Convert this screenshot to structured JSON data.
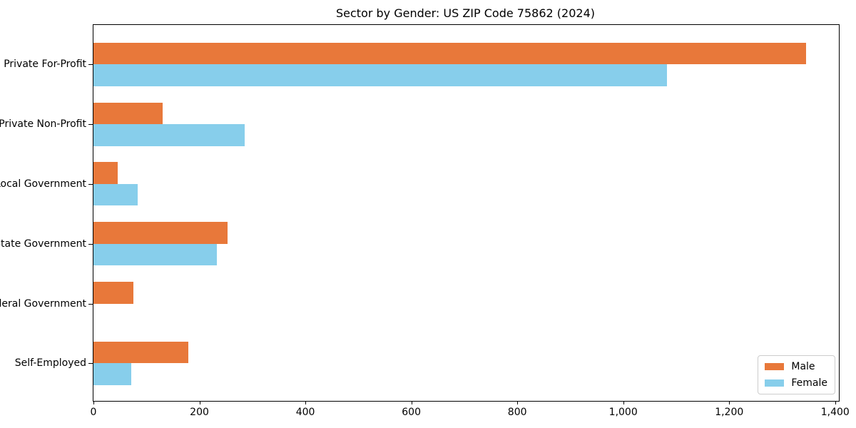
{
  "chart_data": {
    "type": "bar",
    "orientation": "horizontal",
    "title": "Sector by Gender: US ZIP Code 75862 (2024)",
    "categories": [
      "Private For-Profit",
      "Private Non-Profit",
      "Local Government",
      "State Government",
      "Federal Government",
      "Self-Employed"
    ],
    "series": [
      {
        "name": "Male",
        "color": "#e8783a",
        "values": [
          1345,
          130,
          46,
          253,
          75,
          179
        ]
      },
      {
        "name": "Female",
        "color": "#87ceeb",
        "values": [
          1083,
          286,
          84,
          233,
          0,
          72
        ]
      }
    ],
    "xlabel": "",
    "ylabel": "",
    "xlim": [
      0,
      1407
    ],
    "x_ticks": [
      {
        "value": 0,
        "label": "0"
      },
      {
        "value": 200,
        "label": "200"
      },
      {
        "value": 400,
        "label": "400"
      },
      {
        "value": 600,
        "label": "600"
      },
      {
        "value": 800,
        "label": "800"
      },
      {
        "value": 1000,
        "label": "1,000"
      },
      {
        "value": 1200,
        "label": "1,200"
      },
      {
        "value": 1400,
        "label": "1,400"
      }
    ],
    "grid": false,
    "legend": {
      "position": "lower-right",
      "entries": [
        {
          "label": "Male",
          "color": "#e8783a"
        },
        {
          "label": "Female",
          "color": "#87ceeb"
        }
      ]
    },
    "colors": {
      "axis": "#000000",
      "background": "#ffffff"
    }
  }
}
